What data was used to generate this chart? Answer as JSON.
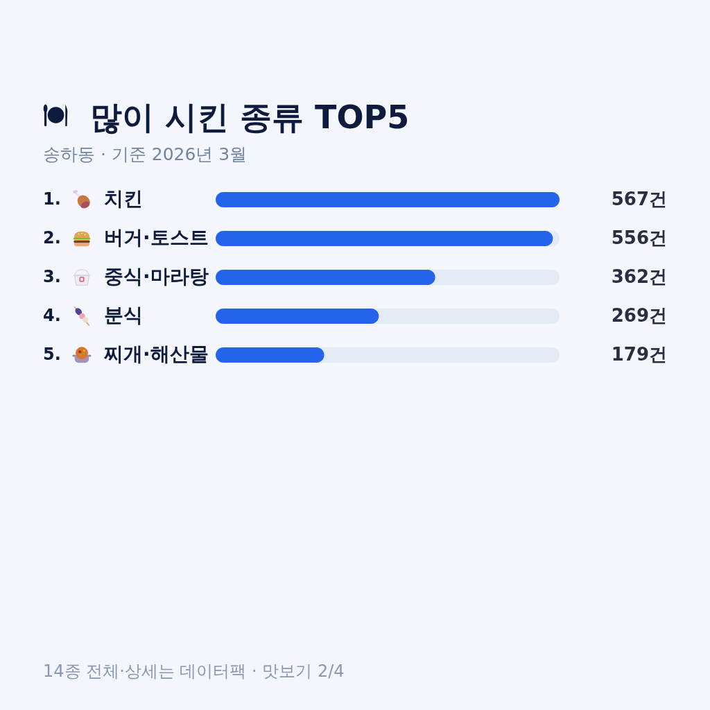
{
  "chart_data": {
    "type": "bar",
    "orientation": "horizontal",
    "title": "많이 시킨 종류 TOP5",
    "subtitle": "송하동 · 기준 2026년 3월",
    "categories": [
      "치킨",
      "버거·토스트",
      "중식·마라탕",
      "분식",
      "찌개·해산물"
    ],
    "values": [
      567,
      556,
      362,
      269,
      179
    ],
    "color": "#2563eb",
    "xlim": [
      0,
      567
    ],
    "value_labels": [
      "567건",
      "556건",
      "362건",
      "269건",
      "179건"
    ],
    "annotations": [
      "1.",
      "2.",
      "3.",
      "4.",
      "5.",
      "14종 전체·상세는 데이터팩 · 맛보기 2/4"
    ]
  }
}
